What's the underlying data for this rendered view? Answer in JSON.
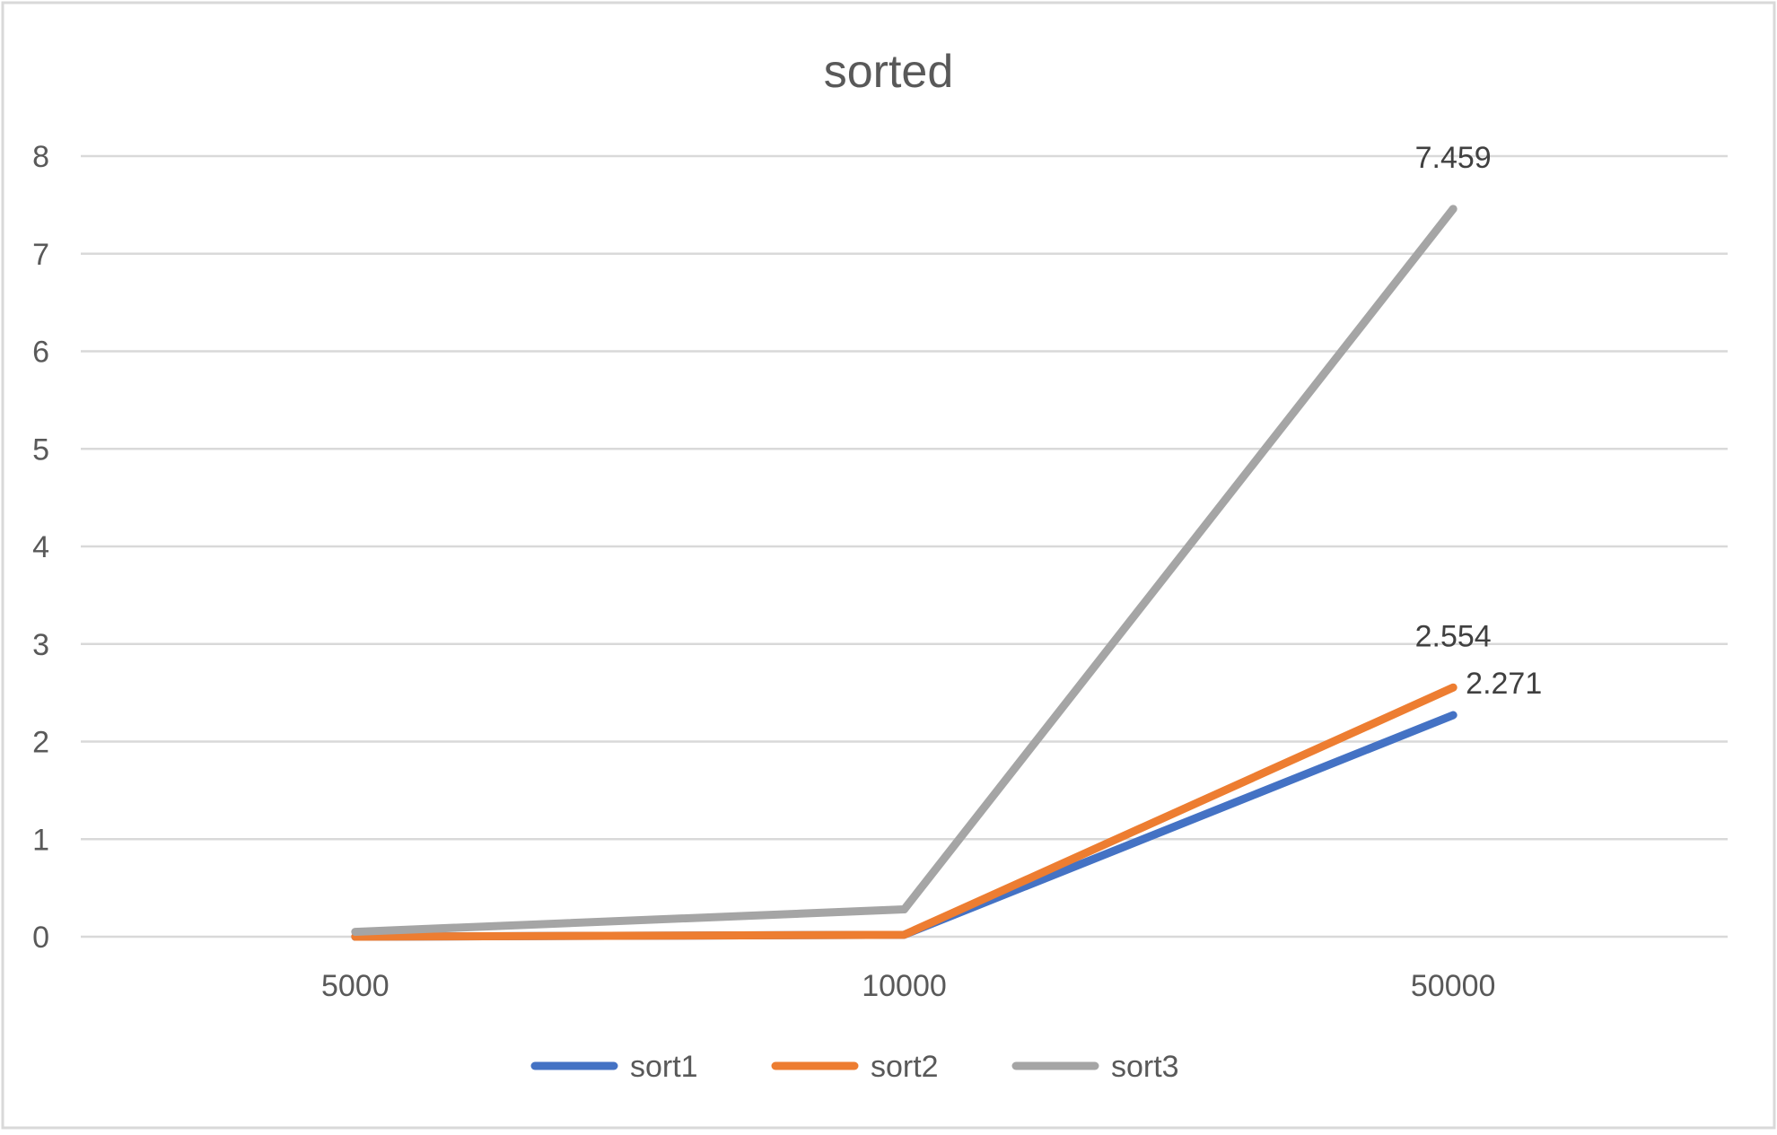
{
  "chart_data": {
    "type": "line",
    "title": "sorted",
    "xlabel": "",
    "ylabel": "",
    "categories": [
      "5000",
      "10000",
      "50000"
    ],
    "ylim": [
      0,
      8
    ],
    "yticks": [
      0,
      1,
      2,
      3,
      4,
      5,
      6,
      7,
      8
    ],
    "grid": true,
    "legend_position": "bottom",
    "series": [
      {
        "name": "sort1",
        "color": "#4472C4",
        "values": [
          0.0,
          0.02,
          2.271
        ],
        "labels": [
          "",
          "",
          "2.271"
        ]
      },
      {
        "name": "sort2",
        "color": "#ED7D31",
        "values": [
          0.0,
          0.02,
          2.554
        ],
        "labels": [
          "",
          "",
          "2.554"
        ]
      },
      {
        "name": "sort3",
        "color": "#A5A5A5",
        "values": [
          0.05,
          0.28,
          7.459
        ],
        "labels": [
          "",
          "",
          "7.459"
        ]
      }
    ]
  }
}
